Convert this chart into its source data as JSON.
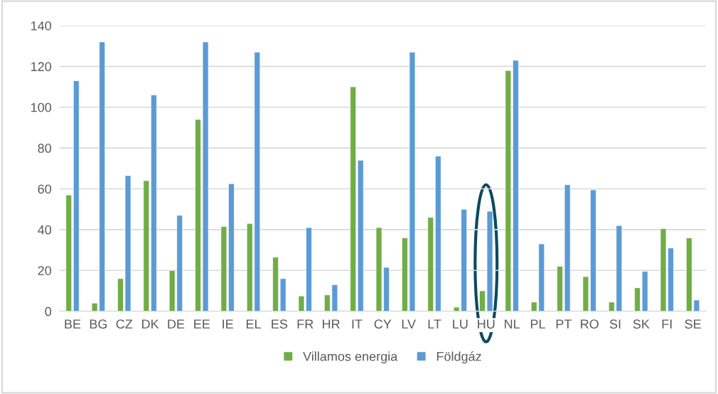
{
  "chart_data": {
    "type": "bar",
    "categories": [
      "BE",
      "BG",
      "CZ",
      "DK",
      "DE",
      "EE",
      "IE",
      "EL",
      "ES",
      "FR",
      "HR",
      "IT",
      "CY",
      "LV",
      "LT",
      "LU",
      "HU",
      "NL",
      "PL",
      "PT",
      "RO",
      "SI",
      "SK",
      "FI",
      "SE"
    ],
    "series": [
      {
        "name": "Villamos energia",
        "color": "#70ad47",
        "values": [
          57,
          4,
          16,
          64,
          20,
          94,
          41.5,
          43,
          26.5,
          7.5,
          8,
          110,
          41,
          36,
          46,
          2,
          10,
          118,
          4.5,
          22,
          17,
          4.5,
          11.5,
          40.5,
          36
        ]
      },
      {
        "name": "Földgáz",
        "color": "#5b9bd5",
        "values": [
          113,
          132,
          66.5,
          106,
          47,
          132,
          62.5,
          127,
          16,
          41,
          13,
          74,
          21.5,
          127,
          76,
          50,
          49,
          123,
          33,
          62,
          59.5,
          42,
          19.5,
          31,
          5.5
        ]
      }
    ],
    "ylim": [
      0,
      140
    ],
    "yticks": [
      0,
      20,
      40,
      60,
      80,
      100,
      120,
      140
    ],
    "grid": "y",
    "legend": "bottom"
  }
}
